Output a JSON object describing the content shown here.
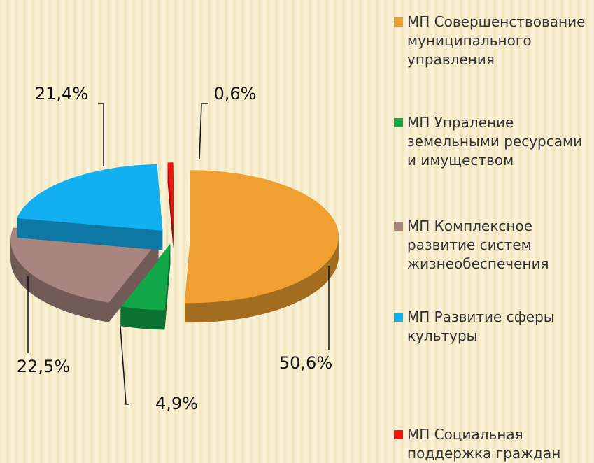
{
  "chart_data": {
    "type": "pie",
    "categories": [
      "МП Совершенствование муниципального управления",
      "МП Упраление земельными ресурсами и имуществом",
      "МП Комплексное развитие систем жизнеобеспечения",
      "МП Развитие сферы культуры",
      "МП Социальная поддержка граждан"
    ],
    "values": [
      50.6,
      4.9,
      22.5,
      21.4,
      0.6
    ],
    "value_labels": [
      "50,6%",
      "4,9%",
      "22,5%",
      "21,4%",
      "0,6%"
    ],
    "colors": [
      "#f0a030",
      "#12a84a",
      "#a8857f",
      "#12b0f0",
      "#f01414"
    ],
    "legend": "right"
  }
}
